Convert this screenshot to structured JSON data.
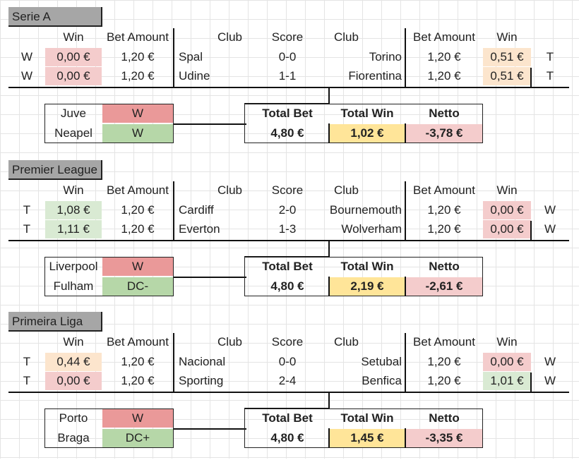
{
  "headers": {
    "win": "Win",
    "bet_amount": "Bet Amount",
    "club": "Club",
    "score": "Score",
    "total_bet": "Total Bet",
    "total_win": "Total Win",
    "netto": "Netto"
  },
  "sections": [
    {
      "title": "Serie A",
      "matches": [
        {
          "l_tag": "W",
          "l_win": "0,00 €",
          "l_bet": "1,20 €",
          "home": "Spal",
          "score": "0-0",
          "away": "Torino",
          "r_bet": "1,20 €",
          "r_win": "0,51 €",
          "r_tag": "T",
          "l_color": "#f4cccc",
          "r_color": "#fce5cd"
        },
        {
          "l_tag": "W",
          "l_win": "0,00 €",
          "l_bet": "1,20 €",
          "home": "Udine",
          "score": "1-1",
          "away": "Fiorentina",
          "r_bet": "1,20 €",
          "r_win": "0,51 €",
          "r_tag": "T",
          "l_color": "#f4cccc",
          "r_color": "#fce5cd"
        }
      ],
      "extra": [
        {
          "team": "Juve",
          "result": "W",
          "color": "#ea9999"
        },
        {
          "team": "Neapel",
          "result": "W",
          "color": "#b6d7a8"
        }
      ],
      "total_bet": "4,80 €",
      "total_win": "1,02 €",
      "netto": "-3,78 €"
    },
    {
      "title": "Premier League",
      "matches": [
        {
          "l_tag": "T",
          "l_win": "1,08 €",
          "l_bet": "1,20 €",
          "home": "Cardiff",
          "score": "2-0",
          "away": "Bournemouth",
          "r_bet": "1,20 €",
          "r_win": "0,00 €",
          "r_tag": "W",
          "l_color": "#d9ead3",
          "r_color": "#f4cccc"
        },
        {
          "l_tag": "T",
          "l_win": "1,11 €",
          "l_bet": "1,20 €",
          "home": "Everton",
          "score": "1-3",
          "away": "Wolverham",
          "r_bet": "1,20 €",
          "r_win": "0,00 €",
          "r_tag": "W",
          "l_color": "#d9ead3",
          "r_color": "#f4cccc"
        }
      ],
      "extra": [
        {
          "team": "Liverpool",
          "result": "W",
          "color": "#ea9999"
        },
        {
          "team": "Fulham",
          "result": "DC-",
          "color": "#b6d7a8"
        }
      ],
      "total_bet": "4,80 €",
      "total_win": "2,19 €",
      "netto": "-2,61 €"
    },
    {
      "title": "Primeira Liga",
      "matches": [
        {
          "l_tag": "T",
          "l_win": "0,44 €",
          "l_bet": "1,20 €",
          "home": "Nacional",
          "score": "0-0",
          "away": "Setubal",
          "r_bet": "1,20 €",
          "r_win": "0,00 €",
          "r_tag": "W",
          "l_color": "#fce5cd",
          "r_color": "#f4cccc"
        },
        {
          "l_tag": "T",
          "l_win": "0,00 €",
          "l_bet": "1,20 €",
          "home": "Sporting",
          "score": "2-4",
          "away": "Benfica",
          "r_bet": "1,20 €",
          "r_win": "1,01 €",
          "r_tag": "W",
          "l_color": "#f4cccc",
          "r_color": "#d9ead3"
        }
      ],
      "extra": [
        {
          "team": "Porto",
          "result": "W",
          "color": "#ea9999"
        },
        {
          "team": "Braga",
          "result": "DC+",
          "color": "#b6d7a8"
        }
      ],
      "total_bet": "4,80 €",
      "total_win": "1,45 €",
      "netto": "-3,35 €"
    }
  ]
}
